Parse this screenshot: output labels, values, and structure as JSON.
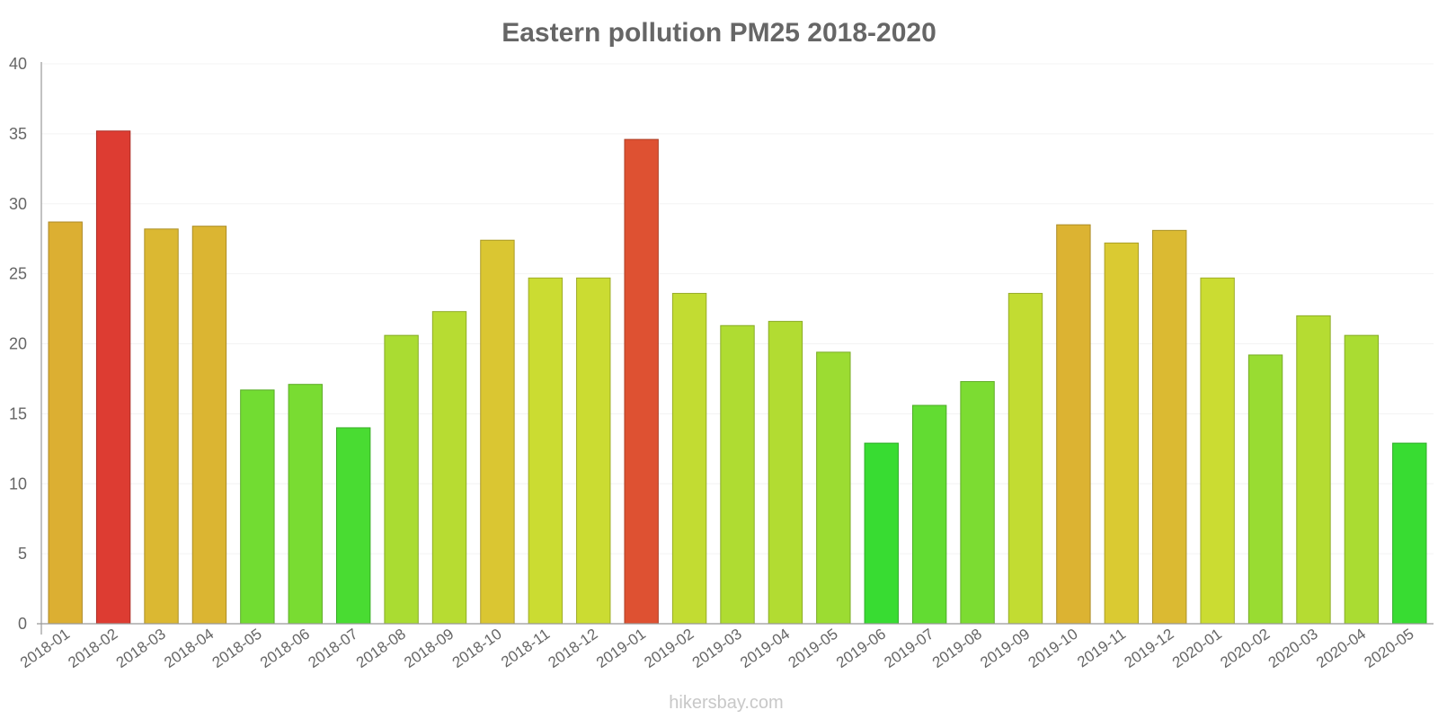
{
  "chart_data": {
    "type": "bar",
    "title": "Eastern pollution PM25 2018-2020",
    "xlabel": "",
    "ylabel": "",
    "ylim": [
      0,
      40
    ],
    "yticks": [
      0,
      5,
      10,
      15,
      20,
      25,
      30,
      35,
      40
    ],
    "grid": true,
    "categories": [
      "2018-01",
      "2018-02",
      "2018-03",
      "2018-04",
      "2018-05",
      "2018-06",
      "2018-07",
      "2018-08",
      "2018-09",
      "2018-10",
      "2018-11",
      "2018-12",
      "2019-01",
      "2019-02",
      "2019-03",
      "2019-04",
      "2019-05",
      "2019-06",
      "2019-07",
      "2019-08",
      "2019-09",
      "2019-10",
      "2019-11",
      "2019-12",
      "2020-01",
      "2020-02",
      "2020-03",
      "2020-04",
      "2020-05"
    ],
    "values": [
      28.7,
      35.2,
      28.2,
      28.4,
      16.7,
      17.1,
      14.0,
      20.6,
      22.3,
      27.4,
      24.7,
      24.7,
      34.6,
      23.6,
      21.3,
      21.6,
      19.4,
      12.9,
      15.6,
      17.3,
      23.6,
      28.5,
      27.2,
      28.1,
      24.7,
      19.2,
      22.0,
      20.6,
      12.9
    ]
  },
  "watermark": "hikersbay.com"
}
